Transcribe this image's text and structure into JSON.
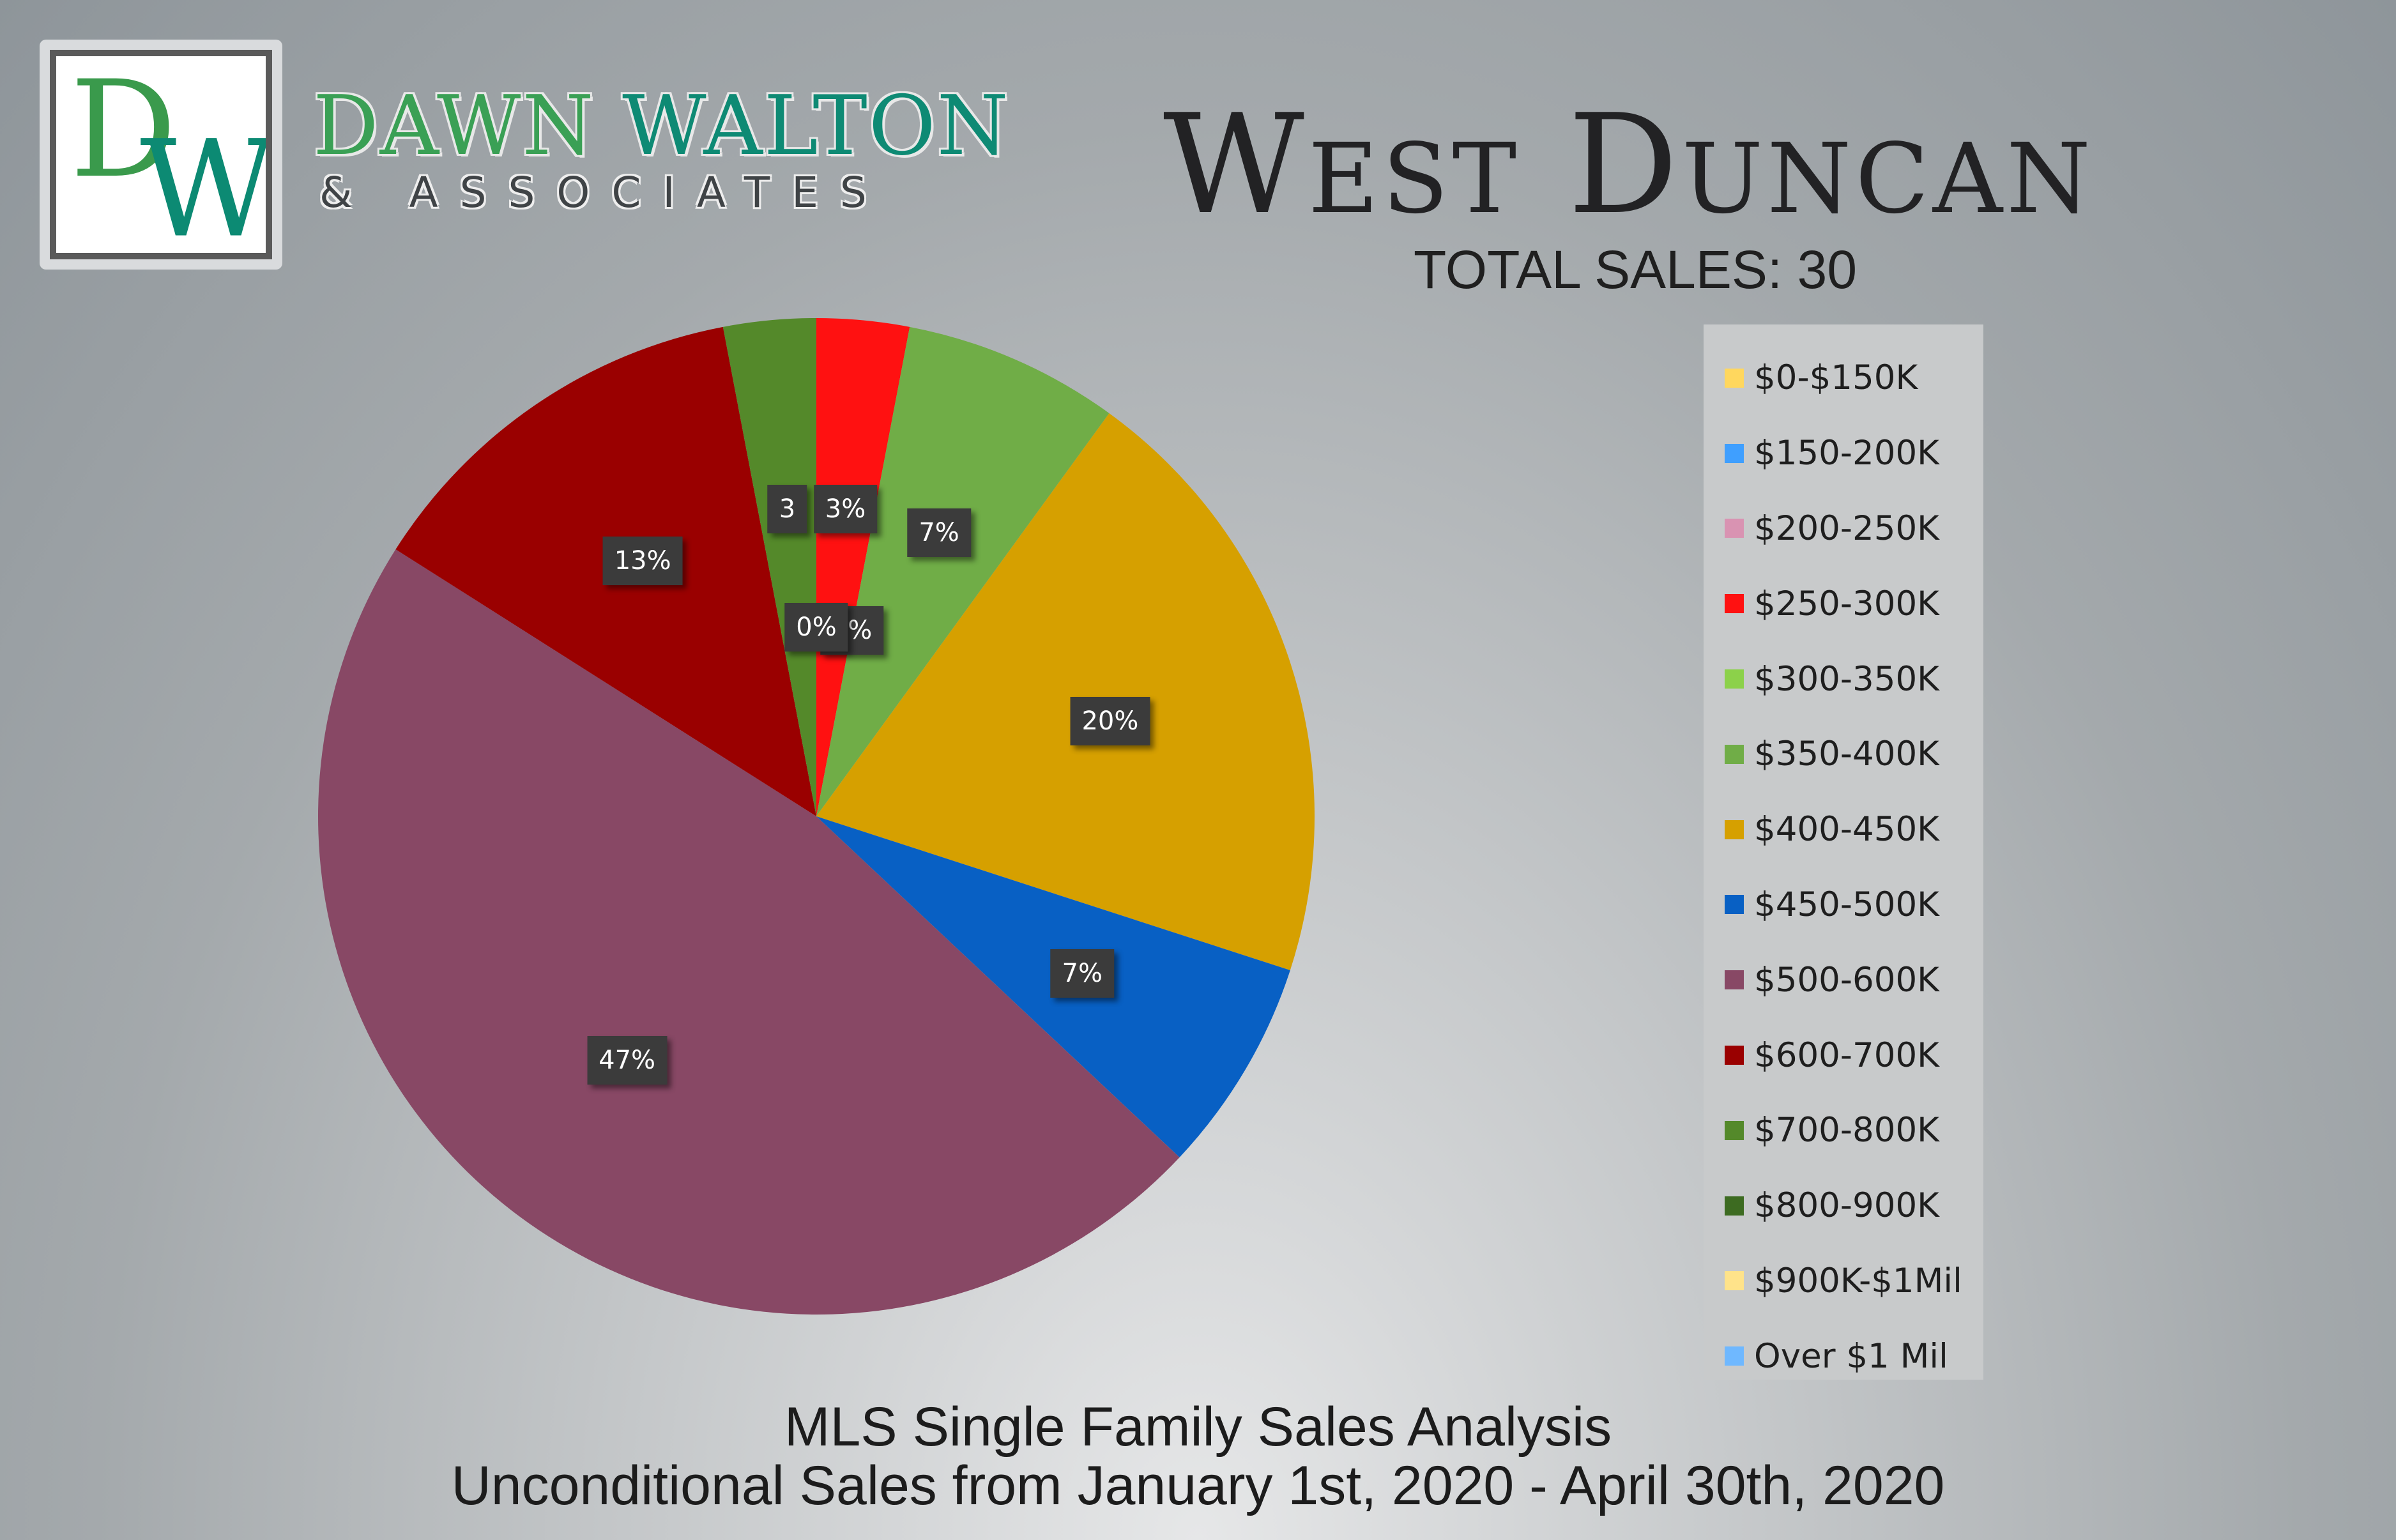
{
  "logo": {
    "monogram_d": "D",
    "monogram_w": "W",
    "name_first": "DAWN",
    "name_last": "WALTON",
    "subtitle": "& ASSOCIATES"
  },
  "chart_data": {
    "type": "pie",
    "title": "West Duncan",
    "subtitle": "TOTAL SALES: 30",
    "slices": [
      {
        "label": "$0-$150K",
        "value": 0,
        "color": "#ffd75e"
      },
      {
        "label": "$150-200K",
        "value": 0,
        "color": "#3f9fff"
      },
      {
        "label": "$200-250K",
        "value": 0,
        "color": "#d993b2"
      },
      {
        "label": "$250-300K",
        "value": 3,
        "color": "#ff1111",
        "data_label": "3%"
      },
      {
        "label": "$300-350K",
        "value": 0,
        "color": "#8cd14a",
        "data_label": "0%"
      },
      {
        "label": "$350-400K",
        "value": 7,
        "color": "#70ad47",
        "data_label": "7%"
      },
      {
        "label": "$400-450K",
        "value": 20,
        "color": "#d6a000",
        "data_label": "20%"
      },
      {
        "label": "$450-500K",
        "value": 7,
        "color": "#0860c4",
        "data_label": "7%"
      },
      {
        "label": "$500-600K",
        "value": 47,
        "color": "#884865",
        "data_label": "47%"
      },
      {
        "label": "$600-700K",
        "value": 13,
        "color": "#9a0000",
        "data_label": "13%"
      },
      {
        "label": "$700-800K",
        "value": 3,
        "color": "#54892a",
        "data_label": "3"
      },
      {
        "label": "$800-900K",
        "value": 0,
        "color": "#3d6b21",
        "data_label": "0%"
      },
      {
        "label": "$900K-$1Mil",
        "value": 0,
        "color": "#ffe38a"
      },
      {
        "label": "Over $1 Mil",
        "value": 0,
        "color": "#6fb8ff"
      }
    ],
    "legend_position": "right"
  },
  "footer": {
    "line1": "MLS Single Family Sales Analysis",
    "line2": "Unconditional Sales from January 1st, 2020 - April 30th, 2020"
  }
}
